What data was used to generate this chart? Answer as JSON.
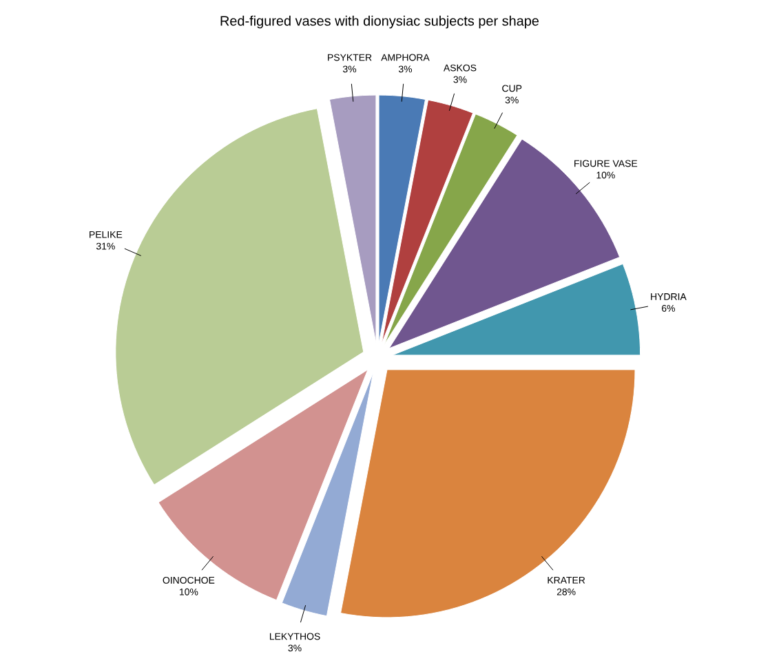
{
  "chart_data": {
    "type": "pie",
    "title": "Red-figured vases with dionysiac subjects per shape",
    "categories": [
      "AMPHORA",
      "ASKOS",
      "CUP",
      "FIGURE VASE",
      "HYDRIA",
      "KRATER",
      "LEKYTHOS",
      "OINOCHOE",
      "PELIKE",
      "PSYKTER"
    ],
    "values": [
      3,
      3,
      3,
      10,
      6,
      28,
      3,
      10,
      31,
      3
    ],
    "value_labels": [
      "3%",
      "3%",
      "3%",
      "10%",
      "6%",
      "28%",
      "3%",
      "10%",
      "31%",
      "3%"
    ],
    "colors": [
      "#4a7ab5",
      "#b0403f",
      "#86a64a",
      "#70568f",
      "#4197ae",
      "#da843e",
      "#93aad4",
      "#d29290",
      "#b9cc95",
      "#a79cc0"
    ]
  }
}
